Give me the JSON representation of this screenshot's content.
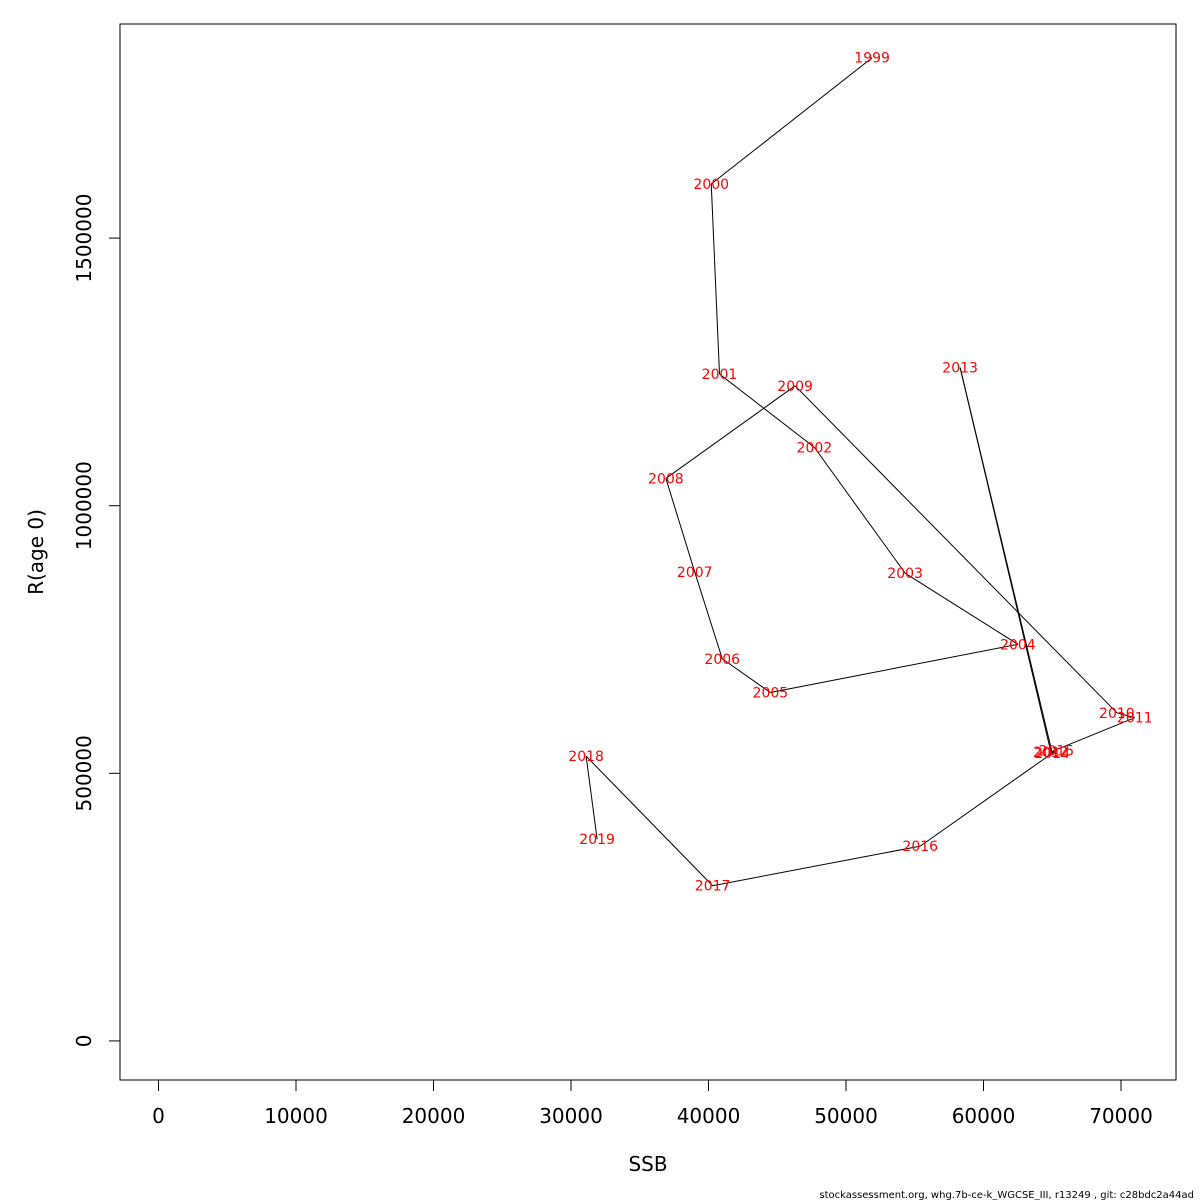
{
  "chart_data": {
    "type": "line",
    "xlabel": "SSB",
    "ylabel": "R(age 0)",
    "xlim": [
      -2800,
      74000
    ],
    "ylim": [
      -73000,
      1900000
    ],
    "x_ticks": [
      0,
      10000,
      20000,
      30000,
      40000,
      50000,
      60000,
      70000
    ],
    "y_ticks": [
      0,
      500000,
      1000000,
      1500000
    ],
    "series": [
      {
        "line_color": "#000000",
        "label_color": "#ff0000",
        "points": [
          {
            "label": "1999",
            "x": 51900,
            "y": 1837000
          },
          {
            "label": "2000",
            "x": 40200,
            "y": 1601000
          },
          {
            "label": "2001",
            "x": 40800,
            "y": 1246000
          },
          {
            "label": "2002",
            "x": 47700,
            "y": 1109000
          },
          {
            "label": "2003",
            "x": 54300,
            "y": 874000
          },
          {
            "label": "2004",
            "x": 62500,
            "y": 741000
          },
          {
            "label": "2005",
            "x": 44500,
            "y": 651000
          },
          {
            "label": "2006",
            "x": 41000,
            "y": 714000
          },
          {
            "label": "2007",
            "x": 39000,
            "y": 876000
          },
          {
            "label": "2008",
            "x": 36900,
            "y": 1051000
          },
          {
            "label": "2009",
            "x": 46300,
            "y": 1224000
          },
          {
            "label": "2010",
            "x": 69700,
            "y": 613000
          },
          {
            "label": "2011",
            "x": 71000,
            "y": 604000
          },
          {
            "label": "2012",
            "x": 64900,
            "y": 540000
          },
          {
            "label": "2013",
            "x": 58300,
            "y": 1258000
          },
          {
            "label": "2014",
            "x": 65000,
            "y": 538000
          },
          {
            "label": "2015",
            "x": 65300,
            "y": 543000
          },
          {
            "label": "2016",
            "x": 55400,
            "y": 364000
          },
          {
            "label": "2017",
            "x": 40300,
            "y": 290000
          },
          {
            "label": "2018",
            "x": 31100,
            "y": 532000
          },
          {
            "label": "2019",
            "x": 31900,
            "y": 377000
          }
        ]
      }
    ],
    "footer": "stockassessment.org, whg.7b-ce-k_WGCSE_III, r13249 , git: c28bdc2a44ad"
  }
}
